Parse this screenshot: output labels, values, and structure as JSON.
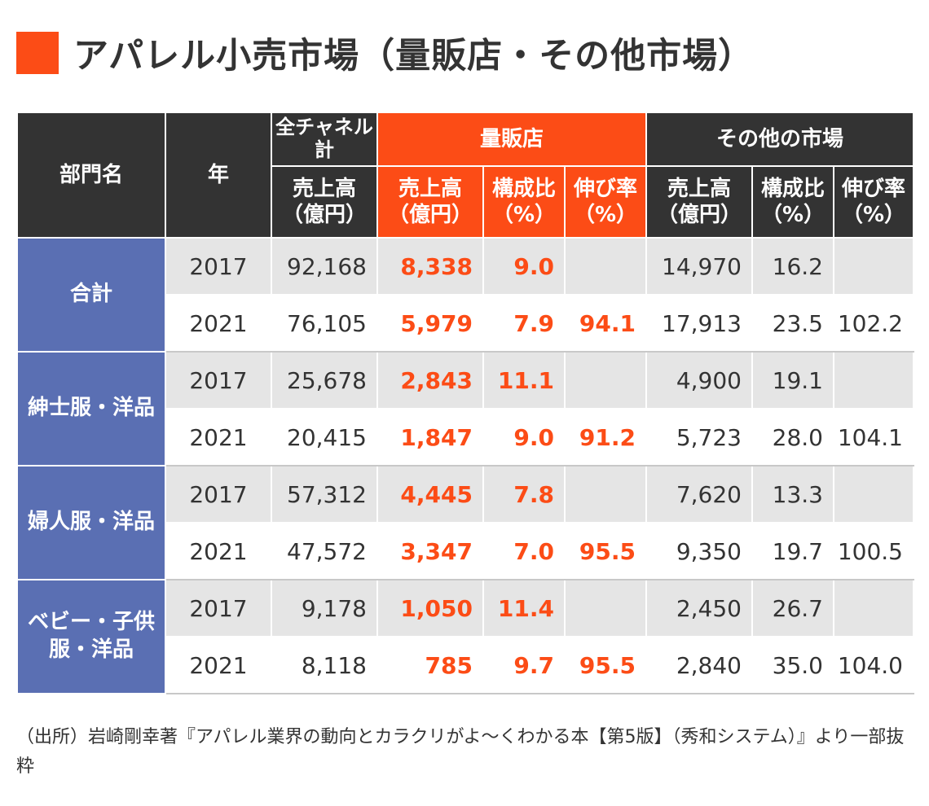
{
  "title": "アパレル小売市場（量販店・その他市場）",
  "colors": {
    "accent": "#fc4c16",
    "header_bg": "#333333",
    "category_bg": "#5a6fb3",
    "row_shade": "#e5e5e5"
  },
  "header": {
    "dept": "部門名",
    "year": "年",
    "all_channels": "全チャネル計",
    "mass": "量販店",
    "other": "その他の市場",
    "sales": "売上高（億円）",
    "share": "構成比（%）",
    "growth": "伸び率（%）"
  },
  "chart_data": {
    "type": "table",
    "title": "アパレル小売市場（量販店・その他市場）",
    "columns": [
      "部門名",
      "年",
      "全チャネル計 売上高（億円）",
      "量販店 売上高（億円）",
      "量販店 構成比（%）",
      "量販店 伸び率（%）",
      "その他の市場 売上高（億円）",
      "その他の市場 構成比（%）",
      "その他の市場 伸び率（%）"
    ],
    "groups": [
      {
        "category": "合計",
        "rows": [
          {
            "year": "2017",
            "total": "92,168",
            "mass_sales": "8,338",
            "mass_share": "9.0",
            "mass_growth": "",
            "other_sales": "14,970",
            "other_share": "16.2",
            "other_growth": ""
          },
          {
            "year": "2021",
            "total": "76,105",
            "mass_sales": "5,979",
            "mass_share": "7.9",
            "mass_growth": "94.1",
            "other_sales": "17,913",
            "other_share": "23.5",
            "other_growth": "102.2"
          }
        ]
      },
      {
        "category": "紳士服・洋品",
        "rows": [
          {
            "year": "2017",
            "total": "25,678",
            "mass_sales": "2,843",
            "mass_share": "11.1",
            "mass_growth": "",
            "other_sales": "4,900",
            "other_share": "19.1",
            "other_growth": ""
          },
          {
            "year": "2021",
            "total": "20,415",
            "mass_sales": "1,847",
            "mass_share": "9.0",
            "mass_growth": "91.2",
            "other_sales": "5,723",
            "other_share": "28.0",
            "other_growth": "104.1"
          }
        ]
      },
      {
        "category": "婦人服・洋品",
        "rows": [
          {
            "year": "2017",
            "total": "57,312",
            "mass_sales": "4,445",
            "mass_share": "7.8",
            "mass_growth": "",
            "other_sales": "7,620",
            "other_share": "13.3",
            "other_growth": ""
          },
          {
            "year": "2021",
            "total": "47,572",
            "mass_sales": "3,347",
            "mass_share": "7.0",
            "mass_growth": "95.5",
            "other_sales": "9,350",
            "other_share": "19.7",
            "other_growth": "100.5"
          }
        ]
      },
      {
        "category": "ベビー・子供服・洋品",
        "rows": [
          {
            "year": "2017",
            "total": "9,178",
            "mass_sales": "1,050",
            "mass_share": "11.4",
            "mass_growth": "",
            "other_sales": "2,450",
            "other_share": "26.7",
            "other_growth": ""
          },
          {
            "year": "2021",
            "total": "8,118",
            "mass_sales": "785",
            "mass_share": "9.7",
            "mass_growth": "95.5",
            "other_sales": "2,840",
            "other_share": "35.0",
            "other_growth": "104.0"
          }
        ]
      }
    ]
  },
  "source": "（出所）岩崎剛幸著『アパレル業界の動向とカラクリがよ～くわかる本【第5版】（秀和システム）』より一部抜粋"
}
